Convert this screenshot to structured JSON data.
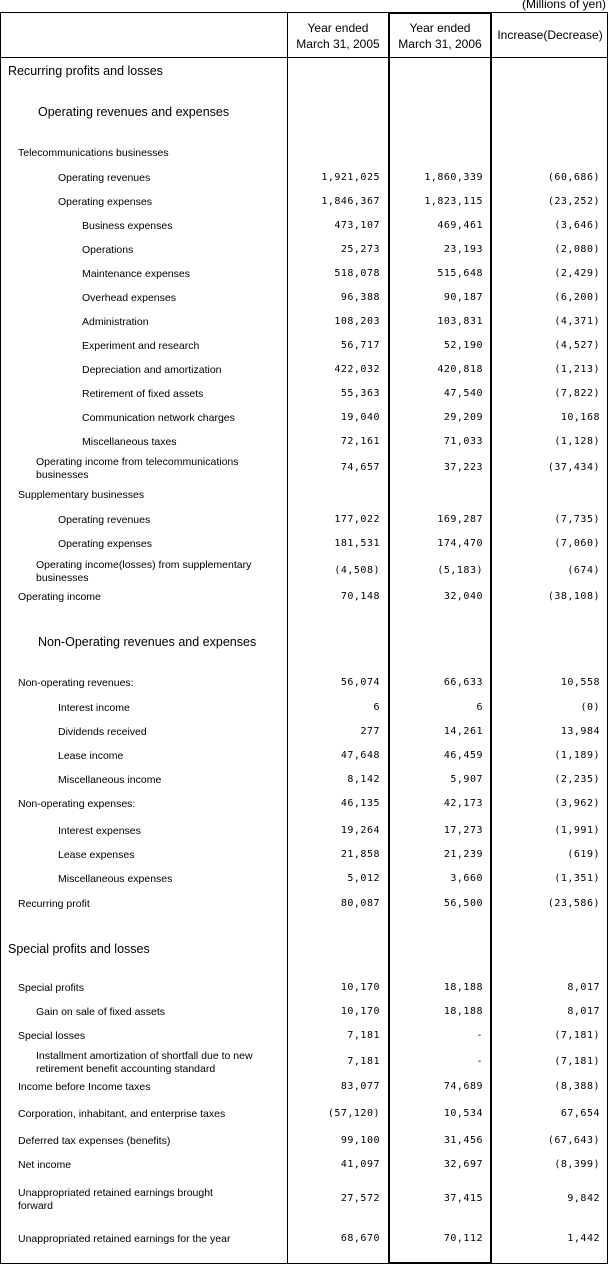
{
  "units": "(Millions of yen)",
  "headers": [
    "Year ended\nMarch 31, 2005",
    "Year ended\nMarch 31, 2006",
    "Increase(Decrease)"
  ],
  "rows": [
    {
      "label": "Recurring profits and losses",
      "kind": "sec",
      "indent": 0,
      "v": [
        "",
        "",
        ""
      ]
    },
    {
      "label": "Operating revenues and expenses",
      "kind": "sec",
      "indent": 1,
      "v": [
        "",
        "",
        ""
      ]
    },
    {
      "label": "Telecommunications businesses",
      "indent": 1,
      "v": [
        "",
        "",
        ""
      ]
    },
    {
      "label": "Operating revenues",
      "indent": 3,
      "v": [
        "1,921,025",
        "1,860,339",
        "(60,686)"
      ]
    },
    {
      "label": "Operating expenses",
      "indent": 3,
      "v": [
        "1,846,367",
        "1,823,115",
        "(23,252)"
      ]
    },
    {
      "label": "Business expenses",
      "indent": 4,
      "v": [
        "473,107",
        "469,461",
        "(3,646)"
      ]
    },
    {
      "label": "Operations",
      "indent": 4,
      "v": [
        "25,273",
        "23,193",
        "(2,080)"
      ]
    },
    {
      "label": "Maintenance expenses",
      "indent": 4,
      "v": [
        "518,078",
        "515,648",
        "(2,429)"
      ]
    },
    {
      "label": "Overhead expenses",
      "indent": 4,
      "v": [
        "96,388",
        "90,187",
        "(6,200)"
      ]
    },
    {
      "label": "Administration",
      "indent": 4,
      "v": [
        "108,203",
        "103,831",
        "(4,371)"
      ]
    },
    {
      "label": "Experiment and research",
      "indent": 4,
      "v": [
        "56,717",
        "52,190",
        "(4,527)"
      ]
    },
    {
      "label": "Depreciation and amortization",
      "indent": 4,
      "v": [
        "422,032",
        "420,818",
        "(1,213)"
      ]
    },
    {
      "label": "Retirement of fixed assets",
      "indent": 4,
      "v": [
        "55,363",
        "47,540",
        "(7,822)"
      ]
    },
    {
      "label": "Communication network charges",
      "indent": 4,
      "v": [
        "19,040",
        "29,209",
        "10,168"
      ]
    },
    {
      "label": "Miscellaneous taxes",
      "indent": 4,
      "v": [
        "72,161",
        "71,033",
        "(1,128)"
      ]
    },
    {
      "label": "Operating income from telecommunications businesses",
      "indent": 2,
      "wrap": true,
      "v": [
        "74,657",
        "37,223",
        "(37,434)"
      ]
    },
    {
      "label": "Supplementary businesses",
      "indent": 1,
      "v": [
        "",
        "",
        ""
      ]
    },
    {
      "label": "Operating revenues",
      "indent": 3,
      "v": [
        "177,022",
        "169,287",
        "(7,735)"
      ]
    },
    {
      "label": "Operating expenses",
      "indent": 3,
      "v": [
        "181,531",
        "174,470",
        "(7,060)"
      ]
    },
    {
      "label": "Operating income(losses) from supplementary businesses",
      "indent": 2,
      "wrap": true,
      "v": [
        "(4,508)",
        "(5,183)",
        "(674)"
      ]
    },
    {
      "label": "Operating income",
      "indent": 1,
      "v": [
        "70,148",
        "32,040",
        "(38,108)"
      ]
    },
    {
      "label": "Non-Operating revenues and expenses",
      "kind": "sec",
      "indent": 1,
      "v": [
        "",
        "",
        ""
      ]
    },
    {
      "label": "Non-operating revenues:",
      "indent": 1,
      "v": [
        "56,074",
        "66,633",
        "10,558"
      ]
    },
    {
      "label": "Interest income",
      "indent": 3,
      "v": [
        "6",
        "6",
        "(0)"
      ]
    },
    {
      "label": "Dividends received",
      "indent": 3,
      "v": [
        "277",
        "14,261",
        "13,984"
      ]
    },
    {
      "label": "Lease income",
      "indent": 3,
      "v": [
        "47,648",
        "46,459",
        "(1,189)"
      ]
    },
    {
      "label": "Miscellaneous income",
      "indent": 3,
      "v": [
        "8,142",
        "5,907",
        "(2,235)"
      ]
    },
    {
      "label": "Non-operating expenses:",
      "indent": 1,
      "v": [
        "46,135",
        "42,173",
        "(3,962)"
      ]
    },
    {
      "label": "Interest expenses",
      "indent": 3,
      "v": [
        "19,264",
        "17,273",
        "(1,991)"
      ]
    },
    {
      "label": "Lease expenses",
      "indent": 3,
      "v": [
        "21,858",
        "21,239",
        "(619)"
      ]
    },
    {
      "label": "Miscellaneous expenses",
      "indent": 3,
      "v": [
        "5,012",
        "3,660",
        "(1,351)"
      ]
    },
    {
      "label": "Recurring profit",
      "indent": 1,
      "v": [
        "80,087",
        "56,500",
        "(23,586)"
      ]
    },
    {
      "label": "Special profits and losses",
      "kind": "sec",
      "indent": 0,
      "v": [
        "",
        "",
        ""
      ]
    },
    {
      "label": "Special profits",
      "indent": 1,
      "v": [
        "10,170",
        "18,188",
        "8,017"
      ]
    },
    {
      "label": "Gain on sale of fixed assets",
      "indent": 2,
      "v": [
        "10,170",
        "18,188",
        "8,017"
      ]
    },
    {
      "label": "Special losses",
      "indent": 1,
      "v": [
        "7,181",
        "-",
        "(7,181)"
      ]
    },
    {
      "label": "Installment amortization of shortfall due to new retirement benefit accounting standard",
      "indent": 2,
      "wrap": true,
      "v": [
        "7,181",
        "-",
        "(7,181)"
      ]
    },
    {
      "label": "Income before Income taxes",
      "indent": 1,
      "v": [
        "83,077",
        "74,689",
        "(8,388)"
      ]
    },
    {
      "label": "Corporation, inhabitant, and enterprise taxes",
      "indent": 1,
      "v": [
        "(57,120)",
        "10,534",
        "67,654"
      ]
    },
    {
      "label": "Deferred tax expenses (benefits)",
      "indent": 1,
      "v": [
        "99,100",
        "31,456",
        "(67,643)"
      ]
    },
    {
      "label": "Net income",
      "indent": 1,
      "v": [
        "41,097",
        "32,697",
        "(8,399)"
      ]
    },
    {
      "label": "Unappropriated retained earnings brought forward",
      "indent": 1,
      "wrap": true,
      "v": [
        "27,572",
        "37,415",
        "9,842"
      ]
    },
    {
      "label": "Unappropriated retained earnings for the year",
      "indent": 1,
      "v": [
        "68,670",
        "70,112",
        "1,442"
      ]
    }
  ]
}
